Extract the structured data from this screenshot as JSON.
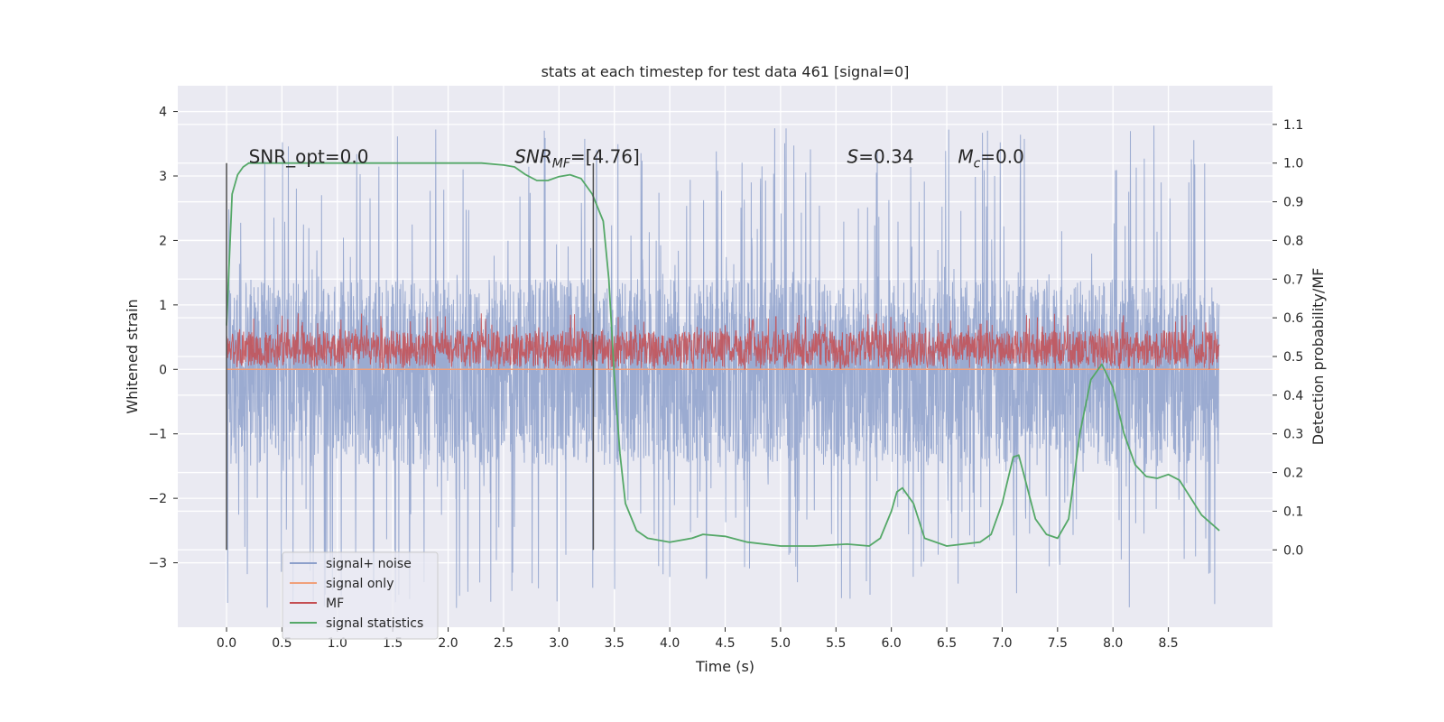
{
  "chart_data": {
    "type": "line",
    "title": "stats at each timestep for test data 461 [signal=0]",
    "xlabel": "Time (s)",
    "ylabel": "Whitened strain",
    "y2label": "Detection probability/MF",
    "xlim": [
      -0.44,
      9.44
    ],
    "ylim": [
      -4.0,
      4.4
    ],
    "y2lim": [
      -0.2,
      1.2
    ],
    "xticks": [
      0.0,
      0.5,
      1.0,
      1.5,
      2.0,
      2.5,
      3.0,
      3.5,
      4.0,
      4.5,
      5.0,
      5.5,
      6.0,
      6.5,
      7.0,
      7.5,
      8.0,
      8.5
    ],
    "xtick_labels": [
      "0.0",
      "0.5",
      "1.0",
      "1.5",
      "2.0",
      "2.5",
      "3.0",
      "3.5",
      "4.0",
      "4.5",
      "5.0",
      "5.5",
      "6.0",
      "6.5",
      "7.0",
      "7.5",
      "8.0",
      "8.5"
    ],
    "yticks": [
      -3,
      -2,
      -1,
      0,
      1,
      2,
      3,
      4
    ],
    "ytick_labels": [
      "−3",
      "−2",
      "−1",
      "0",
      "1",
      "2",
      "3",
      "4"
    ],
    "y2ticks": [
      0.0,
      0.1,
      0.2,
      0.3,
      0.4,
      0.5,
      0.6,
      0.7,
      0.8,
      0.9,
      1.0,
      1.1
    ],
    "y2tick_labels": [
      "0.0",
      "0.1",
      "0.2",
      "0.3",
      "0.4",
      "0.5",
      "0.6",
      "0.7",
      "0.8",
      "0.9",
      "1.0",
      "1.1"
    ],
    "grid": true,
    "legend_placement": "lower-left",
    "series": [
      {
        "name": "signal+ noise",
        "color": "#8da0cb",
        "axis": "left",
        "kind": "noise",
        "t_range": [
          0.0,
          8.96
        ],
        "typical_range": [
          -1.5,
          1.4
        ],
        "extreme_range": [
          -3.7,
          3.8
        ]
      },
      {
        "name": "signal only",
        "color": "#f0a07a",
        "axis": "left",
        "kind": "flat",
        "t_range": [
          0.0,
          8.96
        ],
        "value": 0.0
      },
      {
        "name": "MF",
        "color": "#c44e52",
        "axis": "left",
        "kind": "noise",
        "t_range": [
          0.0,
          8.96
        ],
        "typical_range": [
          0.05,
          0.6
        ],
        "extreme_range": [
          0.0,
          0.87
        ]
      },
      {
        "name": "signal statistics",
        "color": "#55a868",
        "axis": "right",
        "x": [
          0.0,
          0.05,
          0.1,
          0.15,
          0.2,
          0.3,
          0.5,
          1.0,
          1.5,
          2.0,
          2.3,
          2.5,
          2.6,
          2.7,
          2.8,
          2.9,
          3.0,
          3.1,
          3.2,
          3.3,
          3.4,
          3.45,
          3.5,
          3.55,
          3.6,
          3.7,
          3.8,
          4.0,
          4.2,
          4.3,
          4.5,
          4.7,
          5.0,
          5.3,
          5.6,
          5.8,
          5.9,
          6.0,
          6.05,
          6.1,
          6.2,
          6.3,
          6.5,
          6.8,
          6.9,
          7.0,
          7.1,
          7.15,
          7.2,
          7.3,
          7.4,
          7.5,
          7.6,
          7.7,
          7.8,
          7.9,
          8.0,
          8.1,
          8.2,
          8.3,
          8.4,
          8.5,
          8.6,
          8.8,
          8.96
        ],
        "y": [
          0.58,
          0.92,
          0.97,
          0.99,
          1.0,
          1.0,
          1.0,
          1.0,
          1.0,
          1.0,
          1.0,
          0.995,
          0.99,
          0.97,
          0.955,
          0.955,
          0.965,
          0.97,
          0.96,
          0.92,
          0.85,
          0.7,
          0.45,
          0.25,
          0.12,
          0.05,
          0.03,
          0.02,
          0.03,
          0.04,
          0.035,
          0.02,
          0.01,
          0.01,
          0.015,
          0.01,
          0.03,
          0.1,
          0.15,
          0.16,
          0.12,
          0.03,
          0.01,
          0.02,
          0.04,
          0.12,
          0.24,
          0.245,
          0.19,
          0.08,
          0.04,
          0.03,
          0.08,
          0.3,
          0.44,
          0.48,
          0.42,
          0.3,
          0.22,
          0.19,
          0.185,
          0.195,
          0.18,
          0.09,
          0.05
        ]
      }
    ],
    "vlines": [
      {
        "x": 0.0,
        "y_from": 0.0,
        "y_to": 1.0,
        "axis": "right",
        "color": "#4d4d4d"
      },
      {
        "x": 3.31,
        "y_from": 0.0,
        "y_to": 1.0,
        "axis": "right",
        "color": "#4d4d4d"
      }
    ],
    "annotations": [
      {
        "text": "SNR_opt=0.0",
        "x": 0.2,
        "y": 1.0,
        "axis": "right"
      },
      {
        "text": "SNR_MF=[4.76]",
        "main": "SNR",
        "sub": "MF",
        "rest": "=[4.76]",
        "x": 2.6,
        "y": 1.0,
        "axis": "right"
      },
      {
        "text": "S=0.34",
        "main": "S",
        "rest": "=0.34",
        "x": 5.6,
        "y": 1.0,
        "axis": "right"
      },
      {
        "text": "M_c=0.0",
        "main": "M",
        "sub": "c",
        "rest": "=0.0",
        "x": 6.6,
        "y": 1.0,
        "axis": "right"
      }
    ]
  },
  "colors": {
    "axes_bg": "#eaeaf2",
    "grid": "#ffffff",
    "text": "#262626"
  }
}
